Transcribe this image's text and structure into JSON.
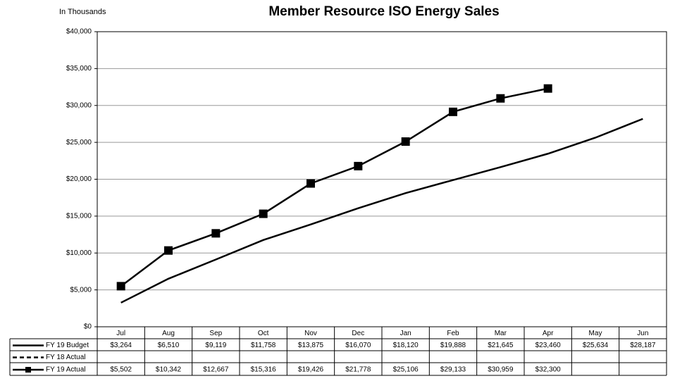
{
  "chart_data": {
    "type": "line",
    "title": "Member Resource ISO Energy Sales",
    "subtitle": "In Thousands",
    "categories": [
      "Jul",
      "Aug",
      "Sep",
      "Oct",
      "Nov",
      "Dec",
      "Jan",
      "Feb",
      "Mar",
      "Apr",
      "May",
      "Jun"
    ],
    "series": [
      {
        "name": "FY 19 Budget",
        "color": "#000000",
        "style": "solid",
        "marker": "none",
        "values": [
          3264,
          6510,
          9119,
          11758,
          13875,
          16070,
          18120,
          19888,
          21645,
          23460,
          25634,
          28187
        ],
        "value_labels": [
          "$3,264",
          "$6,510",
          "$9,119",
          "$11,758",
          "$13,875",
          "$16,070",
          "$18,120",
          "$19,888",
          "$21,645",
          "$23,460",
          "$25,634",
          "$28,187"
        ]
      },
      {
        "name": "FY 18 Actual",
        "color": "#000000",
        "style": "dashed",
        "marker": "none",
        "values": [
          null,
          null,
          null,
          null,
          null,
          null,
          null,
          null,
          null,
          null,
          null,
          null
        ],
        "value_labels": [
          null,
          null,
          null,
          null,
          null,
          null,
          null,
          null,
          null,
          null,
          null,
          null
        ]
      },
      {
        "name": "FY 19 Actual",
        "color": "#000000",
        "style": "solid",
        "marker": "square",
        "values": [
          5502,
          10342,
          12667,
          15316,
          19426,
          21778,
          25106,
          29133,
          30959,
          32300,
          null,
          null
        ],
        "value_labels": [
          "$5,502",
          "$10,342",
          "$12,667",
          "$15,316",
          "$19,426",
          "$21,778",
          "$25,106",
          "$29,133",
          "$30,959",
          "$32,300",
          null,
          null
        ]
      }
    ],
    "ylim": [
      0,
      40000
    ],
    "yticks": [
      {
        "value": 0,
        "label": "$0"
      },
      {
        "value": 5000,
        "label": "$5,000"
      },
      {
        "value": 10000,
        "label": "$10,000"
      },
      {
        "value": 15000,
        "label": "$15,000"
      },
      {
        "value": 20000,
        "label": "$20,000"
      },
      {
        "value": 25000,
        "label": "$25,000"
      },
      {
        "value": 30000,
        "label": "$30,000"
      },
      {
        "value": 35000,
        "label": "$35,000"
      },
      {
        "value": 40000,
        "label": "$40,000"
      }
    ],
    "grid": true
  }
}
